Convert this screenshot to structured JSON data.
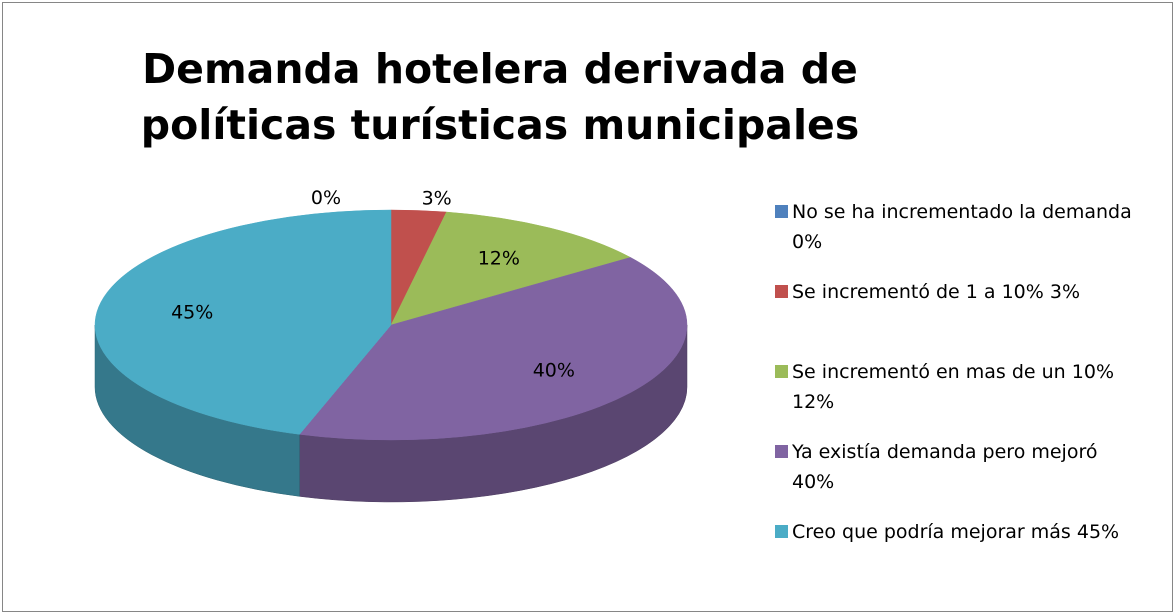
{
  "chart_data": {
    "type": "pie3d",
    "title": "Demanda hotelera derivada de políticas turísticas municipales",
    "series": [
      {
        "name": "No se ha incrementado la demanda   0%",
        "color": "#4f81bd"
      },
      {
        "name": "Se incrementó de 1 a 10%    3%",
        "color": "#c0504d"
      },
      {
        "name": "Se incrementó en mas de un 10%    12%",
        "color": "#9bbb59"
      },
      {
        "name": "Ya existía demanda pero mejoró 40%",
        "color": "#8064a2"
      },
      {
        "name": "Creo que podría mejorar más 45%",
        "color": "#4bacc6"
      }
    ],
    "values": [
      0,
      3,
      12,
      40,
      45
    ],
    "value_labels": [
      "0%",
      "3%",
      "12%",
      "40%",
      "45%"
    ],
    "legend": "right"
  }
}
